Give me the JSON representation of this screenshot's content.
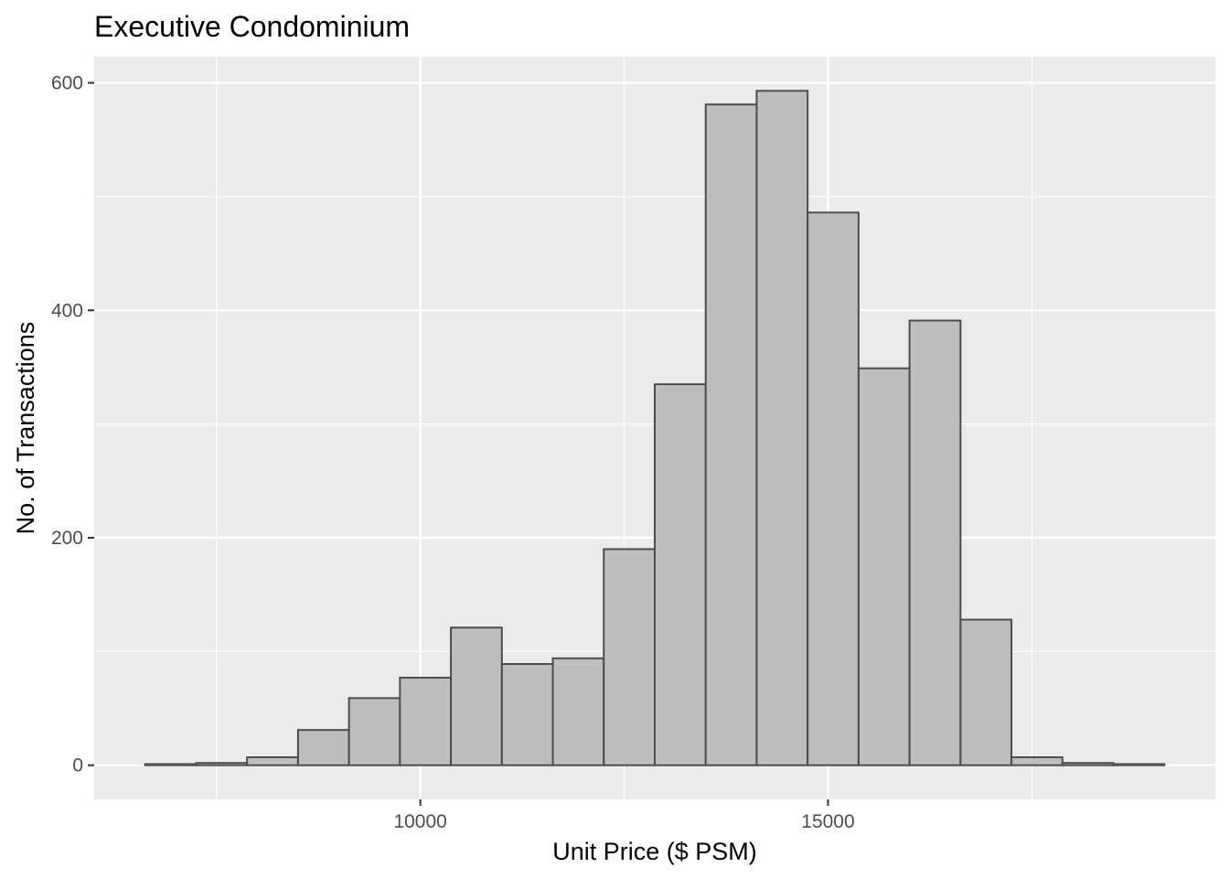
{
  "chart_data": {
    "type": "bar",
    "title": "Executive Condominium",
    "xlabel": "Unit Price ($ PSM)",
    "ylabel": "No. of Transactions",
    "bin_width": 625,
    "bins": [
      {
        "x0": 6625,
        "x1": 7250,
        "count": 1
      },
      {
        "x0": 7250,
        "x1": 7875,
        "count": 2
      },
      {
        "x0": 7875,
        "x1": 8500,
        "count": 7
      },
      {
        "x0": 8500,
        "x1": 9125,
        "count": 31
      },
      {
        "x0": 9125,
        "x1": 9750,
        "count": 59
      },
      {
        "x0": 9750,
        "x1": 10375,
        "count": 77
      },
      {
        "x0": 10375,
        "x1": 11000,
        "count": 121
      },
      {
        "x0": 11000,
        "x1": 11625,
        "count": 89
      },
      {
        "x0": 11625,
        "x1": 12250,
        "count": 94
      },
      {
        "x0": 12250,
        "x1": 12875,
        "count": 190
      },
      {
        "x0": 12875,
        "x1": 13500,
        "count": 335
      },
      {
        "x0": 13500,
        "x1": 14125,
        "count": 581
      },
      {
        "x0": 14125,
        "x1": 14750,
        "count": 593
      },
      {
        "x0": 14750,
        "x1": 15375,
        "count": 486
      },
      {
        "x0": 15375,
        "x1": 16000,
        "count": 349
      },
      {
        "x0": 16000,
        "x1": 16625,
        "count": 391
      },
      {
        "x0": 16625,
        "x1": 17250,
        "count": 128
      },
      {
        "x0": 17250,
        "x1": 17875,
        "count": 7
      },
      {
        "x0": 17875,
        "x1": 18500,
        "count": 2
      },
      {
        "x0": 18500,
        "x1": 19125,
        "count": 1
      }
    ],
    "x_ticks": [
      10000,
      15000
    ],
    "x_tick_labels": [
      "10000",
      "15000"
    ],
    "y_ticks": [
      0,
      200,
      400,
      600
    ],
    "y_tick_labels": [
      "0",
      "200",
      "400",
      "600"
    ],
    "xlim": [
      6000,
      19750
    ],
    "ylim": [
      -30,
      623
    ],
    "colors": {
      "panel_background": "#ebebeb",
      "grid": "#ffffff",
      "bar_fill": "#bebebe",
      "bar_outline": "#4d4d4d",
      "tick_text": "#4d4d4d"
    },
    "grid": true,
    "legend": "none"
  }
}
